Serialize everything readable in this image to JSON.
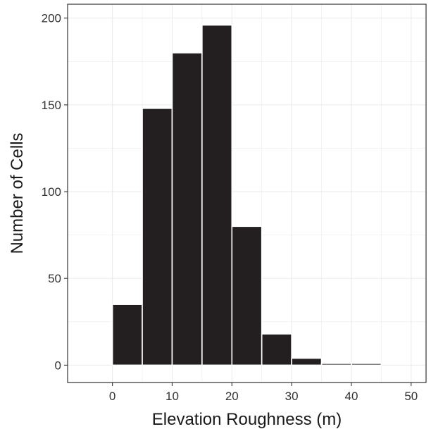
{
  "chart_data": {
    "type": "bar",
    "title": "",
    "xlabel": "Elevation Roughness (m)",
    "ylabel": "Number of Cells",
    "xlim": [
      -7.5,
      52.5
    ],
    "ylim": [
      -10,
      208
    ],
    "xticks": [
      0,
      10,
      20,
      30,
      40,
      50
    ],
    "yticks": [
      0,
      50,
      100,
      150,
      200
    ],
    "bin_width": 5,
    "bins": [
      {
        "x0": 0,
        "x1": 5,
        "value": 35
      },
      {
        "x0": 5,
        "x1": 10,
        "value": 148
      },
      {
        "x0": 10,
        "x1": 15,
        "value": 180
      },
      {
        "x0": 15,
        "x1": 20,
        "value": 196
      },
      {
        "x0": 20,
        "x1": 25,
        "value": 80
      },
      {
        "x0": 25,
        "x1": 30,
        "value": 18
      },
      {
        "x0": 30,
        "x1": 35,
        "value": 4
      },
      {
        "x0": 35,
        "x1": 40,
        "value": 1
      },
      {
        "x0": 40,
        "x1": 45,
        "value": 1
      }
    ],
    "grid": true,
    "bar_color": "#231f20",
    "bar_edge_color": "#ffffff",
    "grid_color": "#ebebeb",
    "frame_color": "#333333"
  }
}
